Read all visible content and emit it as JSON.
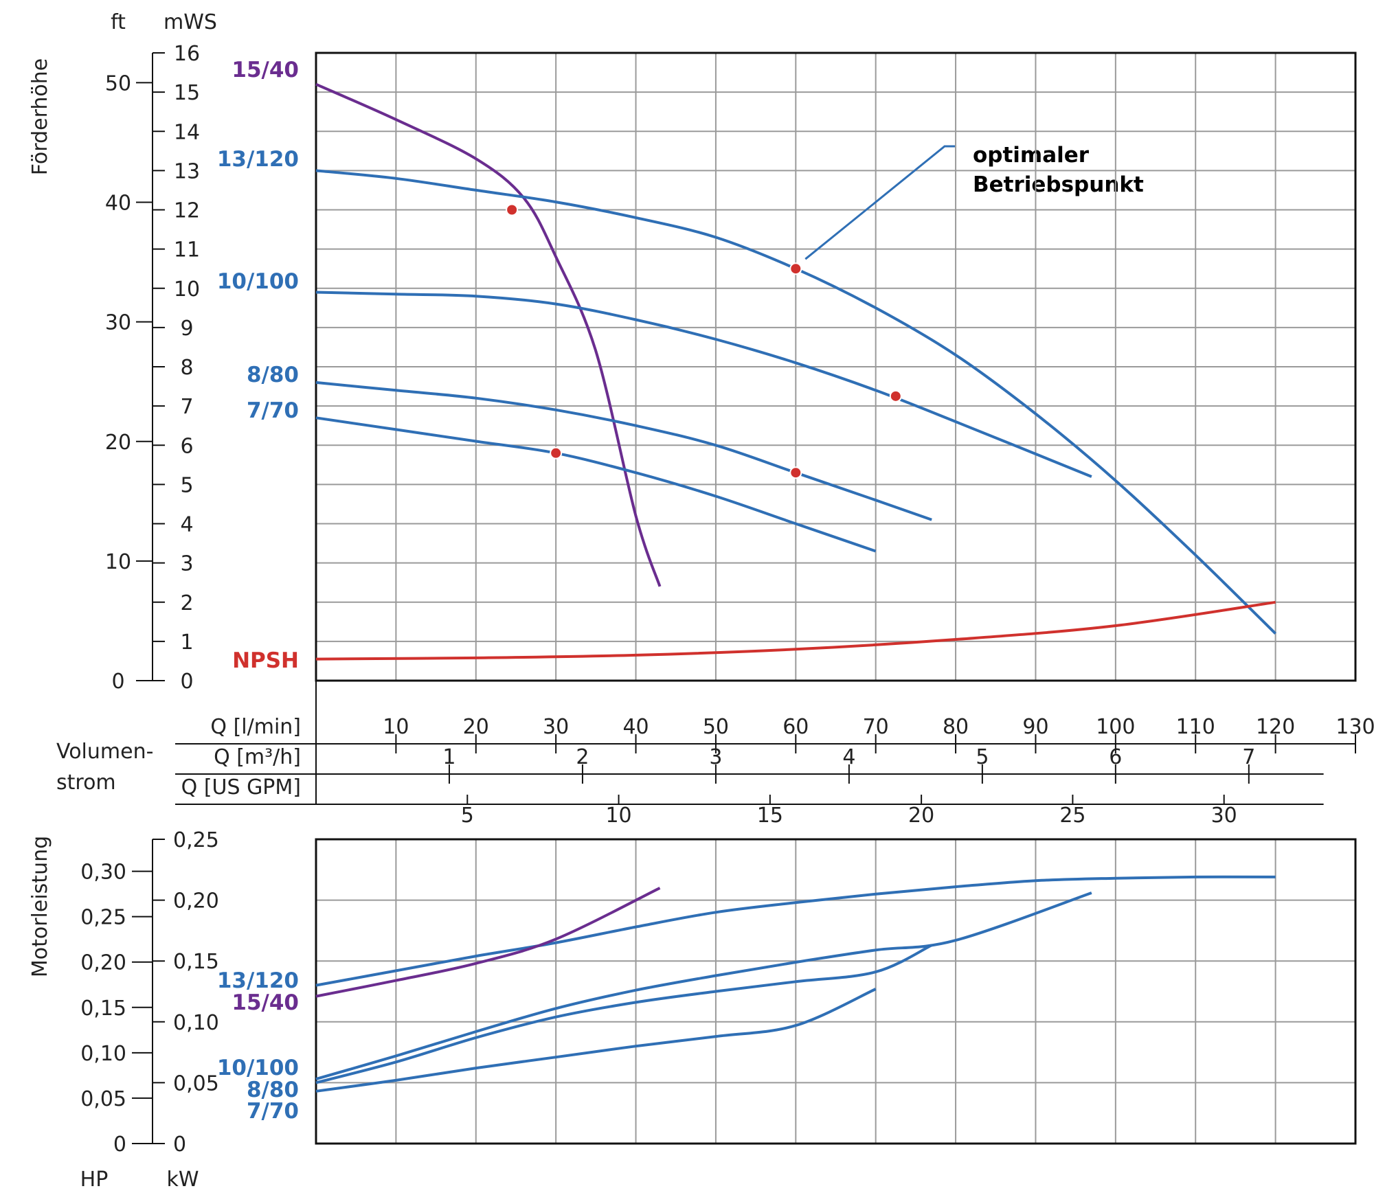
{
  "colors": {
    "blue": "#2f6fb5",
    "purple": "#6a2d8f",
    "red": "#d0312d",
    "grid": "#9a9a9a",
    "axis": "#111111"
  },
  "chart_data": [
    {
      "type": "line",
      "title": "",
      "ylabel": "Förderhöhe",
      "y_unit_left": "ft",
      "y_unit_right": "mWS",
      "xlim": [
        0,
        130
      ],
      "ylim": [
        0,
        16
      ],
      "grid": true,
      "y_ticks_mws": [
        "0",
        "1",
        "2",
        "3",
        "4",
        "5",
        "6",
        "7",
        "8",
        "9",
        "10",
        "11",
        "12",
        "13",
        "14",
        "15",
        "16"
      ],
      "y_ticks_ft": [
        "0",
        "10",
        "20",
        "30",
        "40",
        "50"
      ],
      "x_label": "Volumen-\nstrom",
      "x_label_line1": "Volumen-",
      "x_label_line2": "strom",
      "x_axes": [
        {
          "label": "Q [l/min]",
          "ticks": [
            "10",
            "20",
            "30",
            "40",
            "50",
            "60",
            "70",
            "80",
            "90",
            "100",
            "110",
            "120",
            "130"
          ]
        },
        {
          "label": "Q [m³/h]",
          "ticks": [
            "1",
            "2",
            "3",
            "4",
            "5",
            "6",
            "7"
          ]
        },
        {
          "label": "Q [US GPM]",
          "ticks": [
            "5",
            "10",
            "15",
            "20",
            "25",
            "30"
          ]
        }
      ],
      "series": [
        {
          "name": "15/40",
          "color": "purple",
          "x": [
            0,
            10,
            20,
            26,
            30,
            35,
            40,
            43
          ],
          "y": [
            15.2,
            14.3,
            13.3,
            12.3,
            10.8,
            8.4,
            4.2,
            2.4
          ]
        },
        {
          "name": "13/120",
          "color": "blue",
          "x": [
            0,
            10,
            20,
            30,
            40,
            50,
            60,
            70,
            80,
            90,
            100,
            110,
            120
          ],
          "y": [
            13.0,
            12.8,
            12.5,
            12.2,
            11.8,
            11.3,
            10.5,
            9.5,
            8.3,
            6.8,
            5.1,
            3.2,
            1.2
          ]
        },
        {
          "name": "10/100",
          "color": "blue",
          "x": [
            0,
            10,
            20,
            30,
            40,
            50,
            60,
            70,
            80,
            97
          ],
          "y": [
            9.9,
            9.85,
            9.8,
            9.6,
            9.2,
            8.7,
            8.1,
            7.4,
            6.6,
            5.2
          ]
        },
        {
          "name": "8/80",
          "color": "blue",
          "x": [
            0,
            10,
            20,
            30,
            40,
            50,
            60,
            70,
            77
          ],
          "y": [
            7.6,
            7.4,
            7.2,
            6.9,
            6.5,
            6.0,
            5.3,
            4.6,
            4.1
          ]
        },
        {
          "name": "7/70",
          "color": "blue",
          "x": [
            0,
            10,
            20,
            30,
            40,
            50,
            60,
            70
          ],
          "y": [
            6.7,
            6.4,
            6.1,
            5.8,
            5.3,
            4.7,
            4.0,
            3.3
          ]
        },
        {
          "name": "NPSH",
          "color": "red",
          "x": [
            0,
            20,
            40,
            60,
            80,
            100,
            120
          ],
          "y": [
            0.55,
            0.58,
            0.65,
            0.8,
            1.05,
            1.4,
            2.0
          ]
        }
      ],
      "optimal_points": [
        {
          "series": "15/40",
          "x": 24.5,
          "y": 12.0
        },
        {
          "series": "13/120",
          "x": 60,
          "y": 10.5
        },
        {
          "series": "10/100",
          "x": 72.5,
          "y": 7.25
        },
        {
          "series": "8/80",
          "x": 60,
          "y": 5.3
        },
        {
          "series": "7/70",
          "x": 30,
          "y": 5.8
        }
      ],
      "annotation_line1": "optimaler",
      "annotation_line2": "Betriebspunkt"
    },
    {
      "type": "line",
      "title": "",
      "ylabel": "Motorleistung",
      "y_unit_left": "HP",
      "y_unit_right": "kW",
      "xlim": [
        0,
        130
      ],
      "ylim": [
        0,
        0.25
      ],
      "grid": true,
      "y_ticks_kw": [
        "0",
        "0,05",
        "0,10",
        "0,15",
        "0,20",
        "0,25"
      ],
      "y_ticks_hp": [
        "0",
        "0,05",
        "0,10",
        "0,15",
        "0,20",
        "0,25",
        "0,30"
      ],
      "series": [
        {
          "name": "13/120",
          "color": "blue",
          "x": [
            0,
            10,
            20,
            30,
            40,
            50,
            60,
            70,
            80,
            90,
            100,
            110,
            120
          ],
          "y": [
            0.13,
            0.142,
            0.154,
            0.165,
            0.178,
            0.19,
            0.198,
            0.205,
            0.211,
            0.216,
            0.218,
            0.219,
            0.219
          ]
        },
        {
          "name": "15/40",
          "color": "purple",
          "x": [
            0,
            10,
            20,
            30,
            43
          ],
          "y": [
            0.121,
            0.134,
            0.148,
            0.168,
            0.21
          ]
        },
        {
          "name": "10/100",
          "color": "blue",
          "x": [
            0,
            10,
            20,
            30,
            40,
            50,
            60,
            70,
            80,
            97
          ],
          "y": [
            0.053,
            0.072,
            0.092,
            0.111,
            0.126,
            0.138,
            0.149,
            0.159,
            0.167,
            0.206
          ]
        },
        {
          "name": "8/80",
          "color": "blue",
          "x": [
            0,
            10,
            20,
            30,
            40,
            50,
            60,
            70,
            77
          ],
          "y": [
            0.05,
            0.067,
            0.087,
            0.104,
            0.116,
            0.125,
            0.133,
            0.141,
            0.163
          ]
        },
        {
          "name": "7/70",
          "color": "blue",
          "x": [
            0,
            10,
            20,
            30,
            40,
            50,
            60,
            70
          ],
          "y": [
            0.043,
            0.052,
            0.062,
            0.071,
            0.08,
            0.088,
            0.097,
            0.127
          ]
        }
      ]
    }
  ]
}
